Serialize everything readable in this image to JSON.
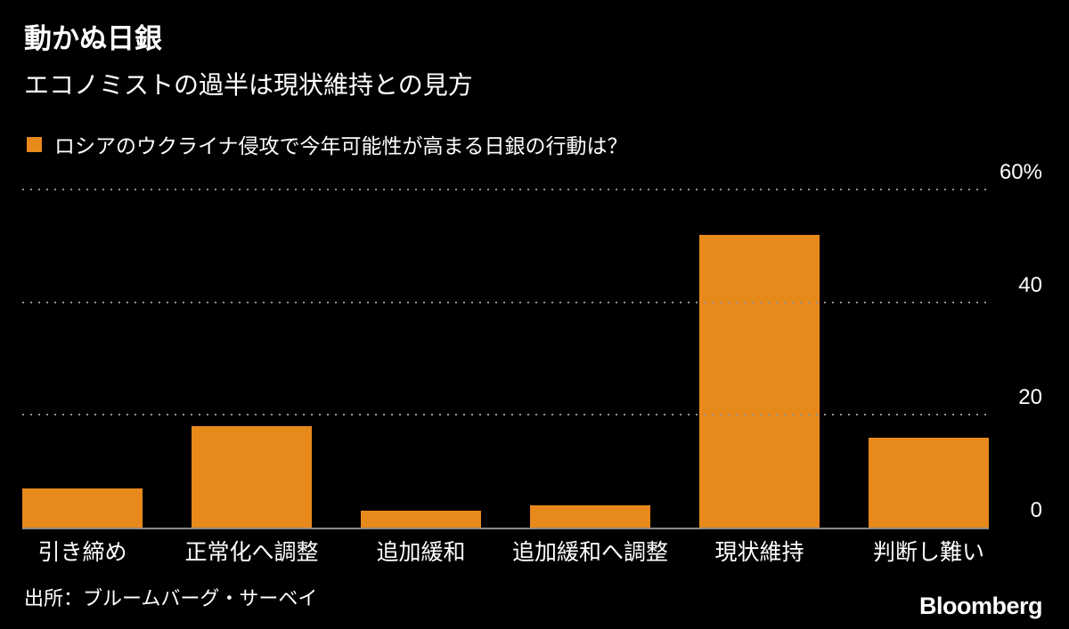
{
  "header": {
    "title": "動かぬ日銀",
    "subtitle": "エコノミストの過半は現状維持との見方"
  },
  "legend": {
    "label": "ロシアのウクライナ侵攻で今年可能性が高まる日銀の行動は？",
    "swatch_color": "#E8891C"
  },
  "chart_data": {
    "type": "bar",
    "title": "動かぬ日銀",
    "subtitle": "エコノミストの過半は現状維持との見方",
    "series_label": "ロシアのウクライナ侵攻で今年可能性が高まる日銀の行動は？",
    "categories": [
      "引き締め",
      "正常化へ調整",
      "追加緩和",
      "追加緩和へ調整",
      "現状維持",
      "判断し難い"
    ],
    "values": [
      7,
      18,
      3,
      4,
      52,
      16
    ],
    "unit": "%",
    "bar_color": "#E8891C",
    "ylim": [
      0,
      60
    ],
    "yticks": [
      {
        "value": 60,
        "label": "60%"
      },
      {
        "value": 40,
        "label": "40"
      },
      {
        "value": 20,
        "label": "20"
      },
      {
        "value": 0,
        "label": "0"
      }
    ],
    "grid": "dotted horizontal, labels on right",
    "legend_position": "top-left"
  },
  "footer": {
    "source": "出所：ブルームバーグ・サーベイ",
    "logo": "Bloomberg"
  }
}
